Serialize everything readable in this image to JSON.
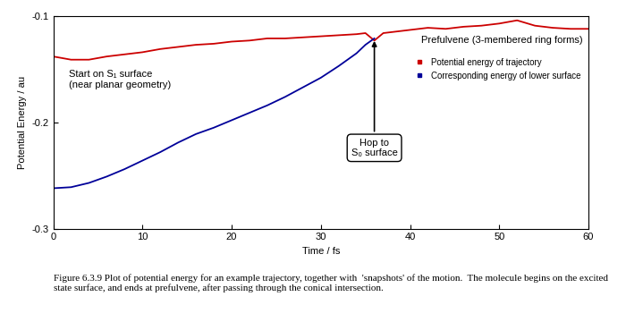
{
  "chart_data": {
    "type": "line",
    "x_label": "Time / fs",
    "y_label": "Potential Energy / au",
    "x": [
      0,
      2,
      4,
      6,
      8,
      10,
      12,
      14,
      16,
      18,
      20,
      22,
      24,
      26,
      28,
      30,
      32,
      34,
      35,
      36,
      37,
      38,
      40,
      42,
      44,
      46,
      48,
      50,
      52,
      54,
      56,
      58,
      60
    ],
    "series": [
      {
        "name": "Potential energy of trajectory",
        "color": "#cc0000",
        "line_style": "solid",
        "values": [
          -0.138,
          -0.141,
          -0.141,
          -0.138,
          -0.136,
          -0.134,
          -0.131,
          -0.129,
          -0.127,
          -0.126,
          -0.124,
          -0.123,
          -0.121,
          -0.121,
          -0.12,
          -0.119,
          -0.118,
          -0.117,
          -0.116,
          -0.123,
          -0.116,
          -0.115,
          -0.113,
          -0.111,
          -0.112,
          -0.11,
          -0.109,
          -0.107,
          -0.104,
          -0.109,
          -0.111,
          -0.112,
          -0.112
        ]
      },
      {
        "name": "Corresponding energy of lower surface",
        "color": "#000099",
        "line_style": "solid",
        "values": [
          -0.262,
          -0.261,
          -0.257,
          -0.251,
          -0.244,
          -0.236,
          -0.228,
          -0.219,
          -0.211,
          -0.205,
          -0.198,
          -0.191,
          -0.184,
          -0.176,
          -0.167,
          -0.158,
          -0.147,
          -0.135,
          -0.127,
          -0.121,
          null,
          null,
          null,
          null,
          null,
          null,
          null,
          null,
          null,
          null,
          null,
          null,
          null
        ]
      }
    ],
    "xlim": [
      0,
      60
    ],
    "xticks": [
      0,
      10,
      20,
      30,
      40,
      50,
      60
    ],
    "ylim": [
      -0.3,
      -0.1
    ],
    "yticks": [
      -0.3,
      -0.2,
      -0.1
    ],
    "legend": "upper right",
    "annotations": {
      "start": "Start on S₁ surface\n(near planar geometry)",
      "hop": "Hop to\nS₀ surface",
      "end": "Prefulvene (3-membered ring forms)"
    },
    "caption": "Figure 6.3.9 Plot of potential energy for an example trajectory, together with  'snapshots' of the motion.  The molecule begins on the excited state surface, and ends at prefulvene, after passing through the conical intersection."
  }
}
